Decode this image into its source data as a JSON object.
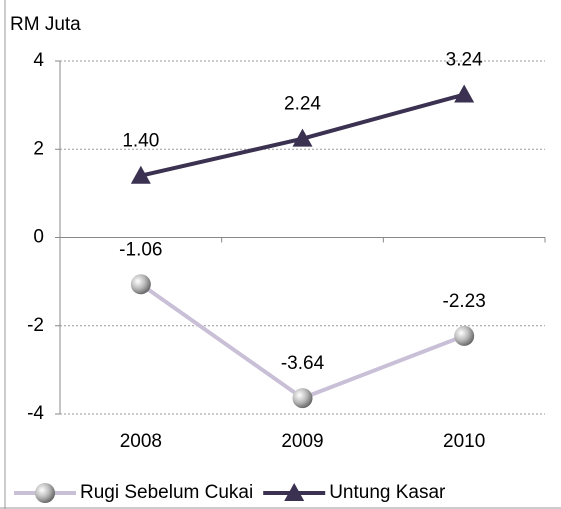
{
  "chart_data": {
    "type": "line",
    "y_label": "RM Juta",
    "categories": [
      "2008",
      "2009",
      "2010"
    ],
    "series": [
      {
        "name": "Rugi Sebelum Cukai",
        "color": "#c9c0d8",
        "marker": "sphere",
        "values": [
          -1.06,
          -3.64,
          -2.23
        ]
      },
      {
        "name": "Untung Kasar",
        "color": "#3b3150",
        "marker": "triangle",
        "values": [
          1.4,
          2.24,
          3.24
        ],
        "value_labels": [
          "1.40",
          "2.24",
          "3.24"
        ]
      }
    ],
    "ylim": [
      -4,
      4
    ],
    "yticks": [
      -4,
      -2,
      0,
      2,
      4
    ],
    "grid": true,
    "legend": "bottom"
  }
}
